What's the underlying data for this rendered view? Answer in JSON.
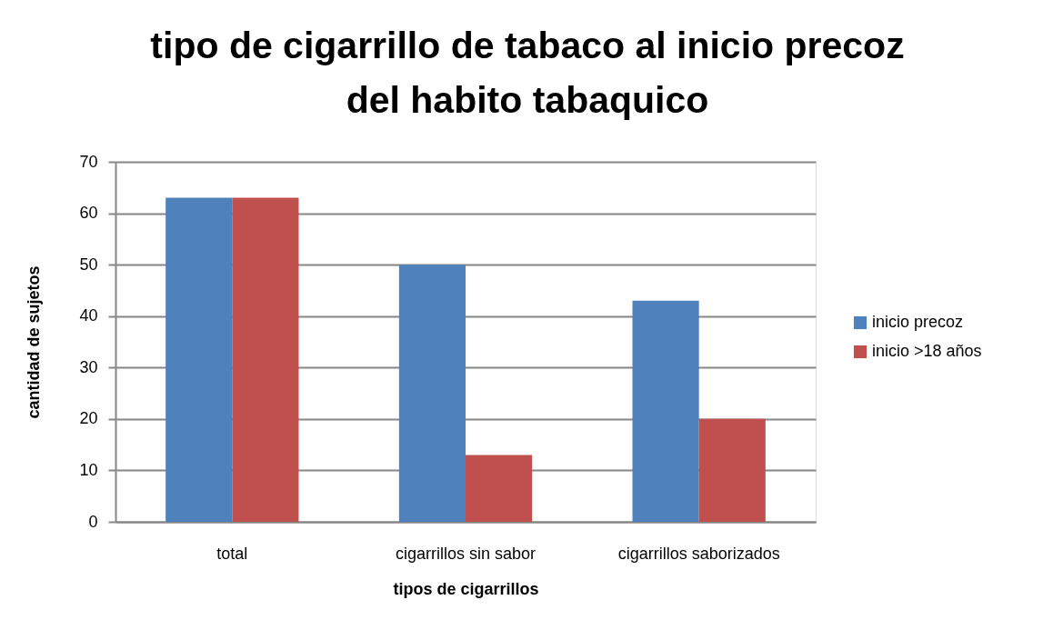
{
  "chart_data": {
    "type": "bar",
    "title": "tipo de cigarrillo de tabaco al inicio precoz del habito tabaquico",
    "xlabel": "tipos de cigarrillos",
    "ylabel": "cantidad de sujetos",
    "categories": [
      "total",
      "cigarrillos sin sabor",
      "cigarrillos saborizados"
    ],
    "series": [
      {
        "name": "inicio precoz",
        "color": "#4f81bd",
        "values": [
          63,
          50,
          43
        ]
      },
      {
        "name": "inicio >18 años",
        "color": "#c0504d",
        "values": [
          63,
          13,
          20
        ]
      }
    ],
    "ylim": [
      0,
      70
    ],
    "yticks": [
      0,
      10,
      20,
      30,
      40,
      50,
      60,
      70
    ],
    "grid": "y",
    "legend": "right"
  }
}
